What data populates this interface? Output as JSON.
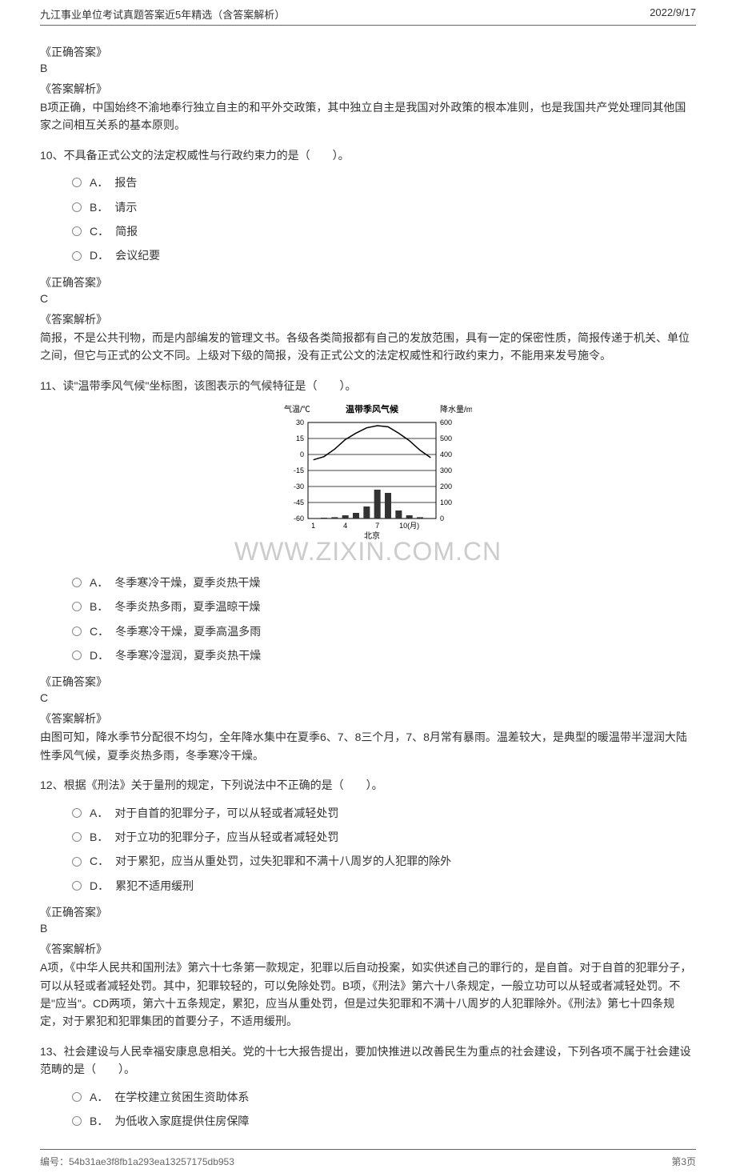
{
  "header": {
    "left": "九江事业单位考试真题答案近5年精选（含答案解析）",
    "right": "2022/9/17"
  },
  "footer": {
    "left": "编号：54b31ae3f8fb1a293ea13257175db953",
    "right": "第3页"
  },
  "watermark": "WWW.ZIXIN.COM.CN",
  "q9_answer": {
    "label": "《正确答案》",
    "value": "B",
    "analysis_label": "《答案解析》",
    "analysis": "B项正确，中国始终不渝地奉行独立自主的和平外交政策，其中独立自主是我国对外政策的根本准则，也是我国共产党处理同其他国家之间相互关系的基本原则。"
  },
  "q10": {
    "text": "10、不具备正式公文的法定权威性与行政约束力的是（　　）。",
    "options": [
      {
        "letter": "A．",
        "text": "报告"
      },
      {
        "letter": "B．",
        "text": "请示"
      },
      {
        "letter": "C．",
        "text": "简报"
      },
      {
        "letter": "D．",
        "text": "会议纪要"
      }
    ],
    "answer_label": "《正确答案》",
    "answer": "C",
    "analysis_label": "《答案解析》",
    "analysis": "简报，不是公共刊物，而是内部编发的管理文书。各级各类简报都有自己的发放范围，具有一定的保密性质，简报传递于机关、单位之间，但它与正式的公文不同。上级对下级的简报，没有正式公文的法定权威性和行政约束力，不能用来发号施令。"
  },
  "q11": {
    "text": "11、读\"温带季风气候\"坐标图，该图表示的气候特征是（　　）。",
    "options": [
      {
        "letter": "A．",
        "text": "冬季寒冷干燥，夏季炎热干燥"
      },
      {
        "letter": "B．",
        "text": "冬季炎热多雨，夏季温晾干燥"
      },
      {
        "letter": "C．",
        "text": "冬季寒冷干燥，夏季高温多雨"
      },
      {
        "letter": "D．",
        "text": "冬季寒冷湿润，夏季炎热干燥"
      }
    ],
    "answer_label": "《正确答案》",
    "answer": "C",
    "analysis_label": "《答案解析》",
    "analysis": "由图可知，降水季节分配很不均匀，全年降水集中在夏季6、7、8三个月，7、8月常有暴雨。温差较大，是典型的暖温带半湿润大陆性季风气候，夏季炎热多雨，冬季寒冷干燥。"
  },
  "q12": {
    "text": "12、根据《刑法》关于量刑的规定，下列说法中不正确的是（　　）。",
    "options": [
      {
        "letter": "A．",
        "text": "对于自首的犯罪分子，可以从轻或者减轻处罚"
      },
      {
        "letter": "B．",
        "text": "对于立功的犯罪分子，应当从轻或者减轻处罚"
      },
      {
        "letter": "C．",
        "text": "对于累犯，应当从重处罚，过失犯罪和不满十八周岁的人犯罪的除外"
      },
      {
        "letter": "D．",
        "text": "累犯不适用缓刑"
      }
    ],
    "answer_label": "《正确答案》",
    "answer": "B",
    "analysis_label": "《答案解析》",
    "analysis": "A项，《中华人民共和国刑法》第六十七条第一款规定，犯罪以后自动投案，如实供述自己的罪行的，是自首。对于自首的犯罪分子，可以从轻或者减轻处罚。其中，犯罪较轻的，可以免除处罚。B项，《刑法》第六十八条规定，一般立功可以从轻或者减轻处罚。不是\"应当\"。CD两项，第六十五条规定，累犯，应当从重处罚，但是过失犯罪和不满十八周岁的人犯罪除外。《刑法》第七十四条规定，对于累犯和犯罪集团的首要分子，不适用缓刑。"
  },
  "q13": {
    "text": "13、社会建设与人民幸福安康息息相关。党的十七大报告提出，要加快推进以改善民生为重点的社会建设，下列各项不属于社会建设范畴的是（　　）。",
    "options": [
      {
        "letter": "A．",
        "text": "在学校建立贫困生资助体系"
      },
      {
        "letter": "B．",
        "text": "为低收入家庭提供住房保障"
      }
    ]
  },
  "chart": {
    "title": "温带季风气候",
    "y_left_label": "气温/℃",
    "y_right_label": "降水量/mm",
    "x_label": "北京",
    "y_left_ticks": [
      "30",
      "15",
      "0",
      "-15",
      "-30",
      "-45",
      "-60"
    ],
    "y_right_ticks": [
      "600",
      "500",
      "400",
      "300",
      "200",
      "100",
      "0"
    ],
    "x_ticks": [
      "1",
      "4",
      "7",
      "10(月)"
    ],
    "temp_curve": [
      -5,
      -2,
      5,
      14,
      20,
      25,
      27,
      26,
      20,
      13,
      4,
      -3
    ],
    "precip_bars": [
      3,
      5,
      8,
      20,
      35,
      75,
      180,
      160,
      50,
      20,
      8,
      3
    ],
    "colors": {
      "axis": "#000000",
      "line": "#000000",
      "bar": "#333333",
      "bg": "#ffffff"
    }
  }
}
